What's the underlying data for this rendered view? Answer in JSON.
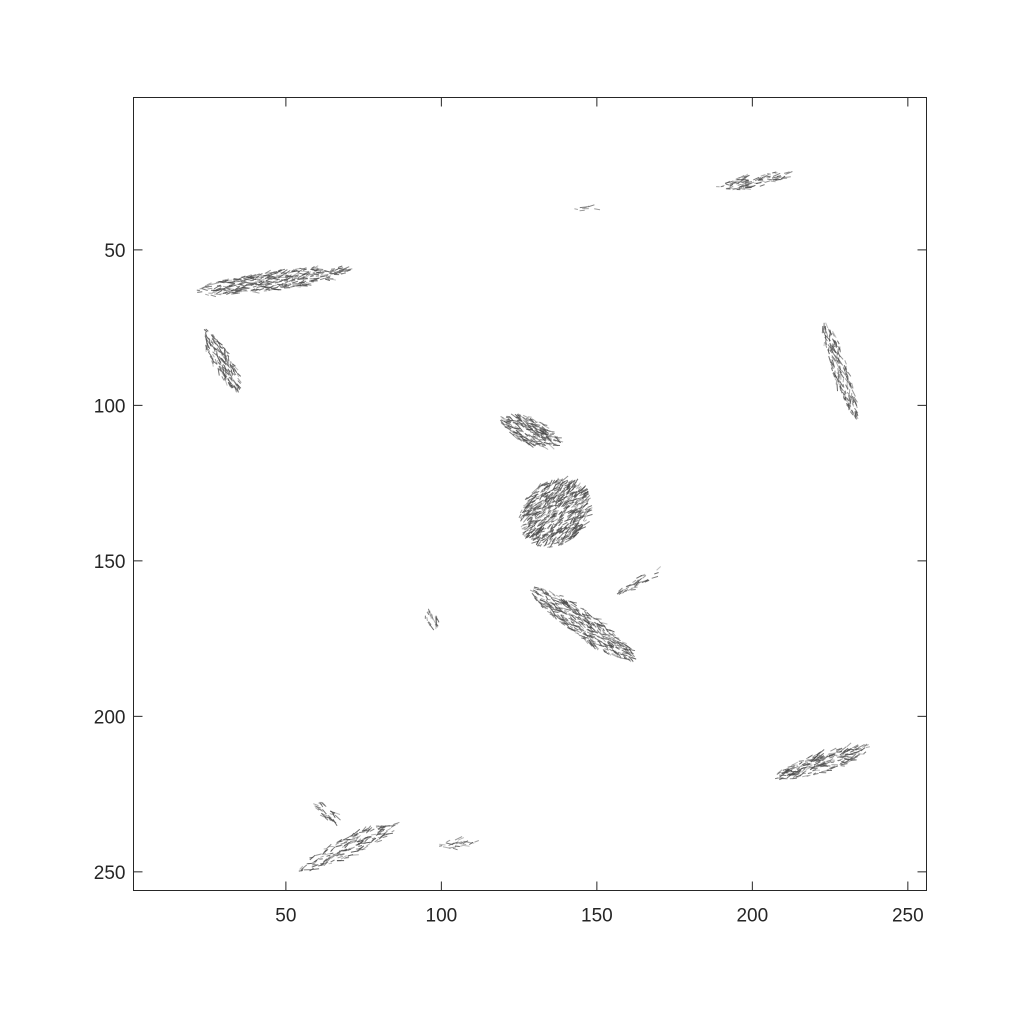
{
  "chart_data": {
    "type": "vector-field",
    "title": "",
    "xlabel": "",
    "ylabel": "",
    "xlim": [
      1,
      256
    ],
    "ylim": [
      1,
      256
    ],
    "y_axis_reversed": true,
    "grid": false,
    "arrow_color": "#4d4d4d",
    "axis_color": "#262626",
    "x_ticks": [
      {
        "value": 50,
        "label": "50"
      },
      {
        "value": 100,
        "label": "100"
      },
      {
        "value": 150,
        "label": "150"
      },
      {
        "value": 200,
        "label": "200"
      },
      {
        "value": 250,
        "label": "250"
      }
    ],
    "y_ticks": [
      {
        "value": 50,
        "label": "50"
      },
      {
        "value": 100,
        "label": "100"
      },
      {
        "value": 150,
        "label": "150"
      },
      {
        "value": 200,
        "label": "200"
      },
      {
        "value": 250,
        "label": "250"
      }
    ],
    "regions": [
      {
        "id": "center-upper-lobe",
        "cx": 128,
        "cy": 108,
        "rx": 10,
        "ry": 4,
        "angle": 25,
        "density": 1.0
      },
      {
        "id": "center-core",
        "cx": 136,
        "cy": 135,
        "rx": 12,
        "ry": 10,
        "angle": -40,
        "density": 1.0
      },
      {
        "id": "center-lower-tail",
        "cx": 145,
        "cy": 170,
        "rx": 20,
        "ry": 4,
        "angle": 35,
        "density": 0.9
      },
      {
        "id": "center-right-spike",
        "cx": 163,
        "cy": 157,
        "rx": 8,
        "ry": 1.5,
        "angle": -30,
        "density": 0.5
      },
      {
        "id": "top-left-band",
        "cx": 45,
        "cy": 60,
        "rx": 25,
        "ry": 3,
        "angle": -8,
        "density": 0.9
      },
      {
        "id": "left-diagonal",
        "cx": 29,
        "cy": 85,
        "rx": 11,
        "ry": 3,
        "angle": 60,
        "density": 0.8
      },
      {
        "id": "top-right-band",
        "cx": 200,
        "cy": 28,
        "rx": 12,
        "ry": 2,
        "angle": -10,
        "density": 0.7
      },
      {
        "id": "right-diagonal",
        "cx": 228,
        "cy": 88,
        "rx": 16,
        "ry": 2.5,
        "angle": 72,
        "density": 0.75
      },
      {
        "id": "lower-right-band",
        "cx": 222,
        "cy": 215,
        "rx": 16,
        "ry": 3,
        "angle": -18,
        "density": 0.85
      },
      {
        "id": "bottom-left-band",
        "cx": 70,
        "cy": 242,
        "rx": 18,
        "ry": 3,
        "angle": -25,
        "density": 0.6
      },
      {
        "id": "bottom-left-small",
        "cx": 62,
        "cy": 230,
        "rx": 5,
        "ry": 2,
        "angle": 40,
        "density": 0.5
      },
      {
        "id": "mid-left-speck",
        "cx": 97,
        "cy": 168,
        "rx": 4,
        "ry": 2,
        "angle": 70,
        "density": 0.5
      },
      {
        "id": "bottom-center-speck",
        "cx": 105,
        "cy": 241,
        "rx": 6,
        "ry": 1.5,
        "angle": -5,
        "density": 0.45
      },
      {
        "id": "top-center-speck",
        "cx": 146,
        "cy": 37,
        "rx": 4,
        "ry": 1,
        "angle": 0,
        "density": 0.35
      }
    ]
  }
}
